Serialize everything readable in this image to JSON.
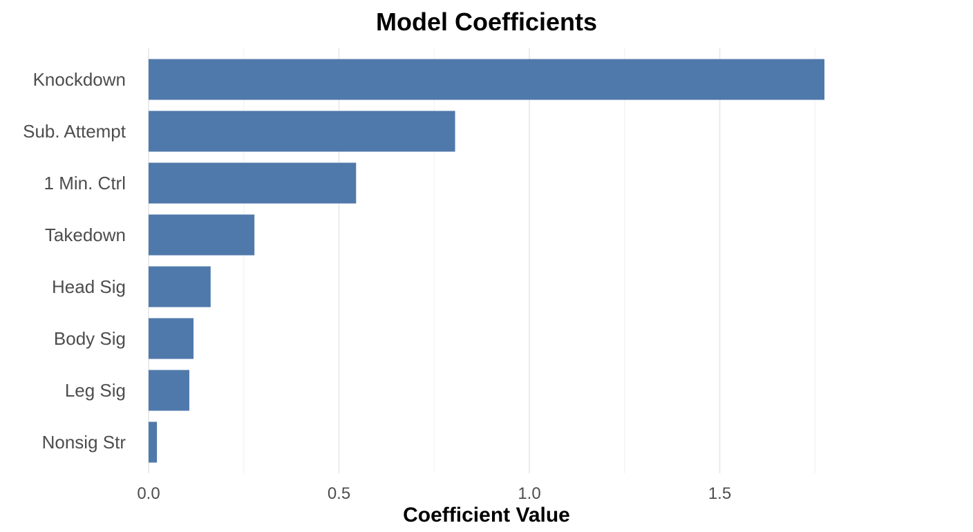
{
  "chart_data": {
    "type": "bar",
    "orientation": "horizontal",
    "title": "Model Coefficients",
    "xlabel": "Coefficient Value",
    "ylabel": "",
    "categories": [
      "Knockdown",
      "Sub. Attempt",
      "1 Min. Ctrl",
      "Takedown",
      "Head Sig",
      "Body Sig",
      "Leg Sig",
      "Nonsig Str"
    ],
    "values": [
      1.775,
      0.805,
      0.545,
      0.278,
      0.163,
      0.118,
      0.107,
      0.022
    ],
    "xlim": [
      0,
      1.9
    ],
    "xticks": [
      0.0,
      0.5,
      1.0,
      1.5
    ],
    "xtick_labels": [
      "0.0",
      "0.5",
      "1.0",
      "1.5"
    ],
    "grid": true,
    "bar_color": "#5079ab"
  }
}
